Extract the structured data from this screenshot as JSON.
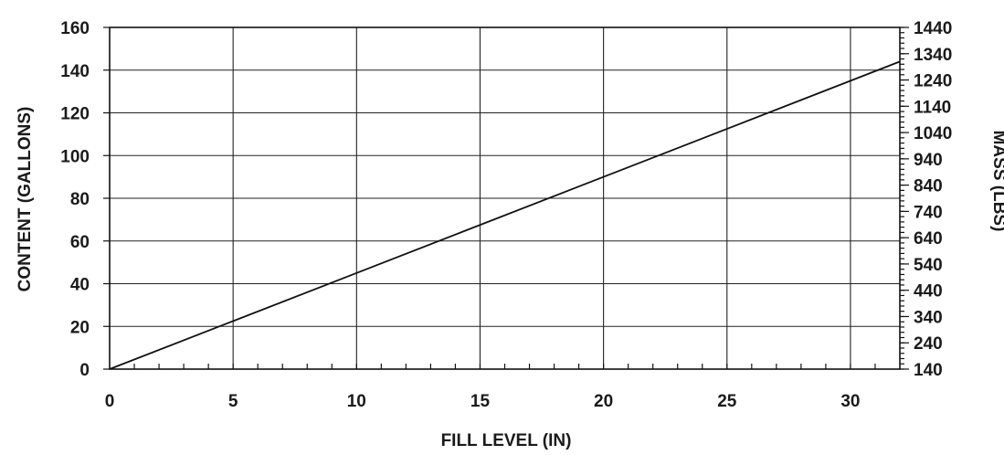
{
  "chart_data": {
    "type": "line",
    "xlabel": "FILL LEVEL (IN)",
    "ylabel": "CONTENT (GALLONS)",
    "y2label": "MASS (LBS)",
    "xlim": [
      0,
      32
    ],
    "ylim": [
      0,
      160
    ],
    "y2lim": [
      140,
      1440
    ],
    "x_ticks": [
      {
        "value": 0,
        "label": "0"
      },
      {
        "value": 5,
        "label": "5"
      },
      {
        "value": 10,
        "label": "10"
      },
      {
        "value": 15,
        "label": "15"
      },
      {
        "value": 20,
        "label": "20"
      },
      {
        "value": 25,
        "label": "25"
      },
      {
        "value": 30,
        "label": "30"
      }
    ],
    "y_ticks": [
      0,
      20,
      40,
      60,
      80,
      100,
      120,
      140,
      160
    ],
    "y2_ticks": [
      140,
      240,
      340,
      440,
      540,
      640,
      740,
      840,
      940,
      1040,
      1140,
      1240,
      1340,
      1440
    ],
    "x_gridlines": [
      5,
      10,
      15,
      20,
      25,
      30
    ],
    "x_minor_tick_step": 1,
    "y2_minor_tick_step": 20,
    "grid": true,
    "series": [
      {
        "name": "",
        "x": [
          0,
          32
        ],
        "y": [
          0,
          144
        ]
      }
    ]
  }
}
